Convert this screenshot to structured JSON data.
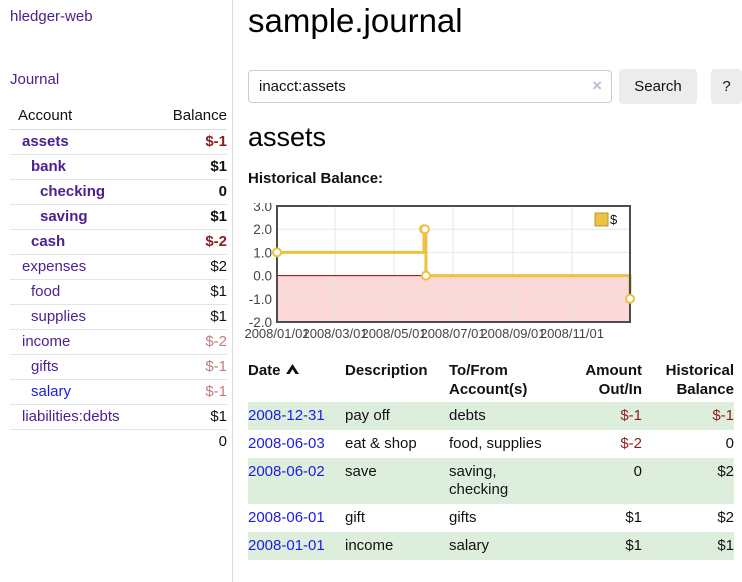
{
  "colors": {
    "link_purple": "#4d2090",
    "link_blue": "#1b1be6",
    "negative_dark_red": "#8f1d1d",
    "negative_muted_rose": "#c47c7c",
    "row_green": "#ddeedd",
    "chart_line_gold": "#edc240",
    "chart_negative_fill_pink": "#fcd8d8",
    "chart_zero_line_red": "#8b0000"
  },
  "sidebar": {
    "brand": "hledger-web",
    "nav_journal": "Journal",
    "accounts": {
      "header_account": "Account",
      "header_balance": "Balance",
      "rows": [
        {
          "name": "assets",
          "balance": "$-1",
          "indent": 1,
          "bold": true,
          "name_tone": "purple",
          "balance_tone": "negstrong"
        },
        {
          "name": "bank",
          "balance": "$1",
          "indent": 2,
          "bold": true,
          "name_tone": "purple",
          "balance_tone": "normal"
        },
        {
          "name": "checking",
          "balance": "0",
          "indent": 3,
          "bold": true,
          "name_tone": "purple",
          "balance_tone": "normal"
        },
        {
          "name": "saving",
          "balance": "$1",
          "indent": 3,
          "bold": true,
          "name_tone": "purple",
          "balance_tone": "normal"
        },
        {
          "name": "cash",
          "balance": "$-2",
          "indent": 2,
          "bold": true,
          "name_tone": "purple",
          "balance_tone": "negstrong"
        },
        {
          "name": "expenses",
          "balance": "$2",
          "indent": 1,
          "bold": false,
          "name_tone": "purple",
          "balance_tone": "normal"
        },
        {
          "name": "food",
          "balance": "$1",
          "indent": 2,
          "bold": false,
          "name_tone": "purple",
          "balance_tone": "normal"
        },
        {
          "name": "supplies",
          "balance": "$1",
          "indent": 2,
          "bold": false,
          "name_tone": "purple",
          "balance_tone": "normal"
        },
        {
          "name": "income",
          "balance": "$-2",
          "indent": 1,
          "bold": false,
          "name_tone": "purple",
          "balance_tone": "rose"
        },
        {
          "name": "gifts",
          "balance": "$-1",
          "indent": 2,
          "bold": false,
          "name_tone": "purple",
          "balance_tone": "rose"
        },
        {
          "name": "salary",
          "balance": "$-1",
          "indent": 2,
          "bold": false,
          "name_tone": "blue",
          "balance_tone": "rose"
        },
        {
          "name": "liabilities:debts",
          "balance": "$1",
          "indent": 1,
          "bold": false,
          "name_tone": "purple",
          "balance_tone": "normal"
        }
      ],
      "total": "0"
    }
  },
  "main": {
    "title": "sample.journal",
    "search": {
      "value": "inacct:assets",
      "clear": "×",
      "submit": "Search",
      "help": "?"
    },
    "account_heading": "assets",
    "section_label": "Historical Balance:"
  },
  "chart_data": {
    "type": "line",
    "step": true,
    "title": "Historical Balance",
    "x": [
      "2008-01-01",
      "2008-06-01",
      "2008-06-02",
      "2008-06-03",
      "2008-12-31"
    ],
    "series": [
      {
        "name": "$",
        "values": [
          1,
          2,
          2,
          0,
          -1
        ]
      }
    ],
    "ylim": [
      -2.0,
      3.0
    ],
    "yticks": [
      3.0,
      2.0,
      1.0,
      0.0,
      -1.0,
      -2.0
    ],
    "ytick_labels": [
      "3.0",
      "2.0",
      "1.0",
      "0.0",
      "-1.0",
      "-2.0"
    ],
    "xticks": [
      "2008/01/01",
      "2008/03/01",
      "2008/05/01",
      "2008/07/01",
      "2008/09/01",
      "2008/11/01"
    ],
    "grid": true,
    "legend_position": "top-right",
    "negative_region_shaded": true
  },
  "register": {
    "headers": {
      "date": "Date",
      "description": "Description",
      "accounts_l1": "To/From",
      "accounts_l2": "Account(s)",
      "amount_l1": "Amount",
      "amount_l2": "Out/In",
      "balance_l1": "Historical",
      "balance_l2": "Balance"
    },
    "rows": [
      {
        "date": "2008-12-31",
        "description": "pay off",
        "accounts": "debts",
        "amount": "$-1",
        "amount_tone": "negstrong",
        "balance": "$-1",
        "balance_tone": "negstrong",
        "shaded": true
      },
      {
        "date": "2008-06-03",
        "description": "eat & shop",
        "accounts": "food, supplies",
        "amount": "$-2",
        "amount_tone": "negstrong",
        "balance": "0",
        "balance_tone": "normal",
        "shaded": false
      },
      {
        "date": "2008-06-02",
        "description": "save",
        "accounts": "saving, checking",
        "amount": "0",
        "amount_tone": "normal",
        "balance": "$2",
        "balance_tone": "normal",
        "shaded": true
      },
      {
        "date": "2008-06-01",
        "description": "gift",
        "accounts": "gifts",
        "amount": "$1",
        "amount_tone": "normal",
        "balance": "$2",
        "balance_tone": "normal",
        "shaded": false
      },
      {
        "date": "2008-01-01",
        "description": "income",
        "accounts": "salary",
        "amount": "$1",
        "amount_tone": "normal",
        "balance": "$1",
        "balance_tone": "normal",
        "shaded": true
      }
    ]
  }
}
